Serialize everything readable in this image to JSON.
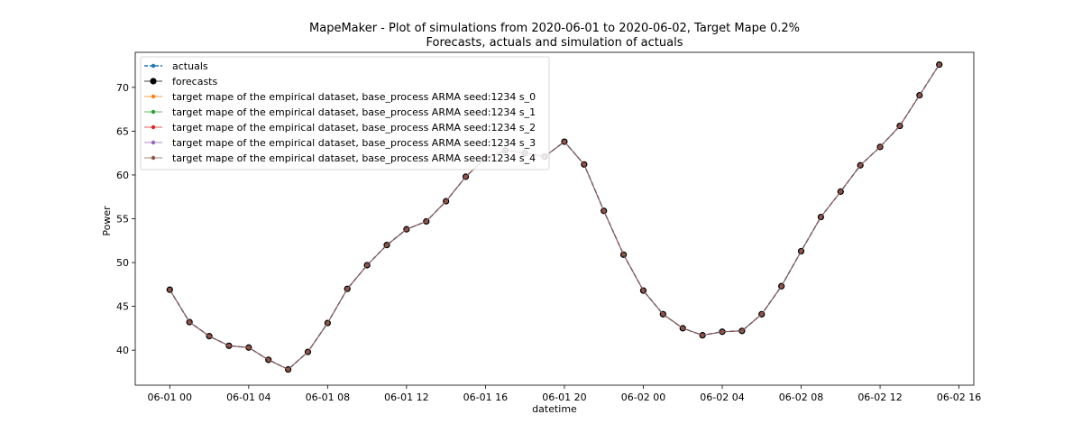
{
  "chart_data": {
    "type": "line",
    "title": "MapeMaker - Plot of simulations from 2020-06-01 to 2020-06-02, Target Mape 0.2%",
    "subtitle": "Forecasts, actuals and simulation of actuals",
    "xlabel": "datetime",
    "ylabel": "Power",
    "xlim": [
      "2020-06-01 -1.75h",
      "2020-06-02 16.75h"
    ],
    "ylim": [
      36,
      74
    ],
    "x_tick_labels": [
      "06-01 00",
      "06-01 04",
      "06-01 08",
      "06-01 12",
      "06-01 16",
      "06-01 20",
      "06-02 00",
      "06-02 04",
      "06-02 08",
      "06-02 12",
      "06-02 16"
    ],
    "y_ticks": [
      40,
      45,
      50,
      55,
      60,
      65,
      70
    ],
    "grid": false,
    "legend_position": "upper-left",
    "x": [
      "2020-06-01 00:00",
      "2020-06-01 01:00",
      "2020-06-01 02:00",
      "2020-06-01 03:00",
      "2020-06-01 04:00",
      "2020-06-01 05:00",
      "2020-06-01 06:00",
      "2020-06-01 07:00",
      "2020-06-01 08:00",
      "2020-06-01 09:00",
      "2020-06-01 10:00",
      "2020-06-01 11:00",
      "2020-06-01 12:00",
      "2020-06-01 13:00",
      "2020-06-01 14:00",
      "2020-06-01 15:00",
      "2020-06-01 16:00",
      "2020-06-01 17:00",
      "2020-06-01 18:00",
      "2020-06-01 19:00",
      "2020-06-01 20:00",
      "2020-06-01 21:00",
      "2020-06-01 22:00",
      "2020-06-01 23:00",
      "2020-06-02 00:00",
      "2020-06-02 01:00",
      "2020-06-02 02:00",
      "2020-06-02 03:00",
      "2020-06-02 04:00",
      "2020-06-02 05:00",
      "2020-06-02 06:00",
      "2020-06-02 07:00",
      "2020-06-02 08:00",
      "2020-06-02 09:00",
      "2020-06-02 10:00",
      "2020-06-02 11:00",
      "2020-06-02 12:00",
      "2020-06-02 13:00",
      "2020-06-02 14:00",
      "2020-06-02 15:00"
    ],
    "series": [
      {
        "name": "actuals",
        "color": "#1f77b4",
        "style": "dashed",
        "marker": "small",
        "values": [
          46.9,
          43.2,
          41.6,
          40.5,
          40.3,
          38.9,
          37.8,
          39.8,
          43.1,
          47.0,
          49.7,
          52.0,
          53.8,
          54.7,
          57.0,
          59.8,
          61.9,
          62.8,
          62.5,
          62.1,
          63.8,
          61.2,
          55.9,
          50.9,
          46.8,
          44.1,
          42.5,
          41.7,
          42.1,
          42.2,
          44.1,
          47.3,
          51.3,
          55.2,
          58.1,
          61.1,
          63.2,
          65.6,
          69.1,
          72.6
        ]
      },
      {
        "name": "forecasts",
        "color": "#000000",
        "style": "solid",
        "marker": "large",
        "values": [
          46.9,
          43.2,
          41.6,
          40.5,
          40.3,
          38.9,
          37.8,
          39.8,
          43.1,
          47.0,
          49.7,
          52.0,
          53.8,
          54.7,
          57.0,
          59.8,
          61.9,
          62.8,
          62.5,
          62.1,
          63.8,
          61.2,
          55.9,
          50.9,
          46.8,
          44.1,
          42.5,
          41.7,
          42.1,
          42.2,
          44.1,
          47.3,
          51.3,
          55.2,
          58.1,
          61.1,
          63.2,
          65.6,
          69.1,
          72.6
        ]
      },
      {
        "name": "target mape  of the empirical dataset, base_process ARMA  seed:1234 s_0",
        "color": "#ff7f0e",
        "style": "solid",
        "marker": "small",
        "values": [
          46.9,
          43.2,
          41.6,
          40.5,
          40.3,
          38.9,
          37.8,
          39.8,
          43.1,
          47.0,
          49.7,
          52.0,
          53.8,
          54.7,
          57.0,
          59.8,
          61.9,
          62.8,
          62.5,
          62.1,
          63.8,
          61.2,
          55.9,
          50.9,
          46.8,
          44.1,
          42.5,
          41.7,
          42.1,
          42.2,
          44.1,
          47.3,
          51.3,
          55.2,
          58.1,
          61.1,
          63.2,
          65.6,
          69.1,
          72.6
        ]
      },
      {
        "name": "target mape  of the empirical dataset, base_process ARMA  seed:1234 s_1",
        "color": "#2ca02c",
        "style": "solid",
        "marker": "small",
        "values": [
          46.9,
          43.2,
          41.6,
          40.5,
          40.3,
          38.9,
          37.8,
          39.8,
          43.1,
          47.0,
          49.7,
          52.0,
          53.8,
          54.7,
          57.0,
          59.8,
          61.9,
          62.8,
          62.5,
          62.1,
          63.8,
          61.2,
          55.9,
          50.9,
          46.8,
          44.1,
          42.5,
          41.7,
          42.1,
          42.2,
          44.1,
          47.3,
          51.3,
          55.2,
          58.1,
          61.1,
          63.2,
          65.6,
          69.1,
          72.6
        ]
      },
      {
        "name": "target mape  of the empirical dataset, base_process ARMA  seed:1234 s_2",
        "color": "#d62728",
        "style": "solid",
        "marker": "small",
        "values": [
          46.9,
          43.2,
          41.6,
          40.5,
          40.3,
          38.9,
          37.8,
          39.8,
          43.1,
          47.0,
          49.7,
          52.0,
          53.8,
          54.7,
          57.0,
          59.8,
          61.9,
          62.8,
          62.5,
          62.1,
          63.8,
          61.2,
          55.9,
          50.9,
          46.8,
          44.1,
          42.5,
          41.7,
          42.1,
          42.2,
          44.1,
          47.3,
          51.3,
          55.2,
          58.1,
          61.1,
          63.2,
          65.6,
          69.1,
          72.6
        ]
      },
      {
        "name": "target mape  of the empirical dataset, base_process ARMA  seed:1234 s_3",
        "color": "#9467bd",
        "style": "solid",
        "marker": "small",
        "values": [
          46.9,
          43.2,
          41.6,
          40.5,
          40.3,
          38.9,
          37.8,
          39.8,
          43.1,
          47.0,
          49.7,
          52.0,
          53.8,
          54.7,
          57.0,
          59.8,
          61.9,
          62.8,
          62.5,
          62.1,
          63.8,
          61.2,
          55.9,
          50.9,
          46.8,
          44.1,
          42.5,
          41.7,
          42.1,
          42.2,
          44.1,
          47.3,
          51.3,
          55.2,
          58.1,
          61.1,
          63.2,
          65.6,
          69.1,
          72.6
        ]
      },
      {
        "name": "target mape  of the empirical dataset, base_process ARMA  seed:1234 s_4",
        "color": "#8c564b",
        "style": "solid",
        "marker": "small",
        "values": [
          46.9,
          43.2,
          41.6,
          40.5,
          40.3,
          38.9,
          37.8,
          39.8,
          43.1,
          47.0,
          49.7,
          52.0,
          53.8,
          54.7,
          57.0,
          59.8,
          61.9,
          62.8,
          62.5,
          62.1,
          63.8,
          61.2,
          55.9,
          50.9,
          46.8,
          44.1,
          42.5,
          41.7,
          42.1,
          42.2,
          44.1,
          47.3,
          51.3,
          55.2,
          58.1,
          61.1,
          63.2,
          65.6,
          69.1,
          72.6
        ]
      }
    ]
  }
}
